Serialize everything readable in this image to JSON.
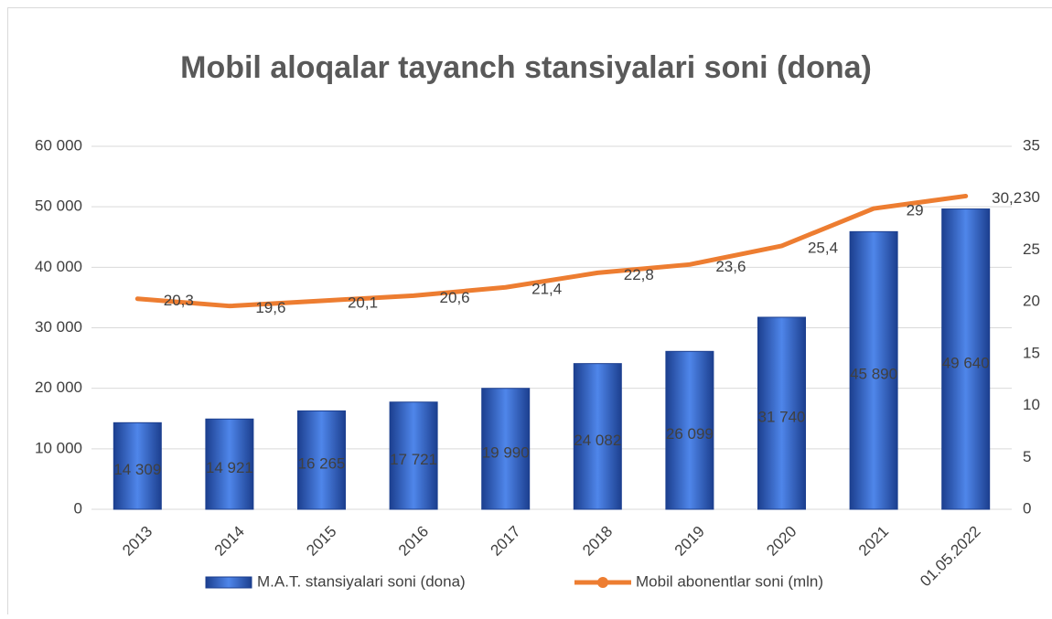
{
  "chart_data": {
    "type": "bar_line",
    "title": "Mobil aloqalar tayanch stansiyalari soni (dona)",
    "categories": [
      "2013",
      "2014",
      "2015",
      "2016",
      "2017",
      "2018",
      "2019",
      "2020",
      "2021",
      "01.05.2022"
    ],
    "series": [
      {
        "name": "M.A.T. stansiyalari soni (dona)",
        "type": "bar",
        "color": "#2f5fc4",
        "values": [
          14309,
          14921,
          16265,
          17721,
          19990,
          24082,
          26099,
          31740,
          45890,
          49640
        ],
        "value_labels": [
          "14 309",
          "14 921",
          "16 265",
          "17 721",
          "19 990",
          "24 082",
          "26 099",
          "31 740",
          "45 890",
          "49 640"
        ]
      },
      {
        "name": "Mobil abonentlar soni (mln)",
        "type": "line",
        "axis": "y2",
        "color": "#ed7d31",
        "values": [
          20.3,
          19.6,
          20.1,
          20.6,
          21.4,
          22.8,
          23.6,
          25.4,
          29,
          30.2
        ],
        "value_labels": [
          "20,3",
          "19,6",
          "20,1",
          "20,6",
          "21,4",
          "22,8",
          "23,6",
          "25,4",
          "29",
          "30,2"
        ]
      }
    ],
    "ylim": [
      0,
      60000
    ],
    "yticks": [
      0,
      {
        "value": 10000,
        "label": "10 000"
      },
      {
        "value": 20000,
        "label": "20 000"
      },
      {
        "value": 30000,
        "label": "30 000"
      },
      {
        "value": 40000,
        "label": "40 000"
      },
      {
        "value": 50000,
        "label": "50 000"
      },
      {
        "value": 60000,
        "label": "60 000"
      }
    ],
    "y2lim": [
      0,
      35
    ],
    "y2ticks": [
      0,
      5,
      10,
      15,
      20,
      25,
      30,
      35
    ],
    "grid": true,
    "legend": "bottom"
  }
}
